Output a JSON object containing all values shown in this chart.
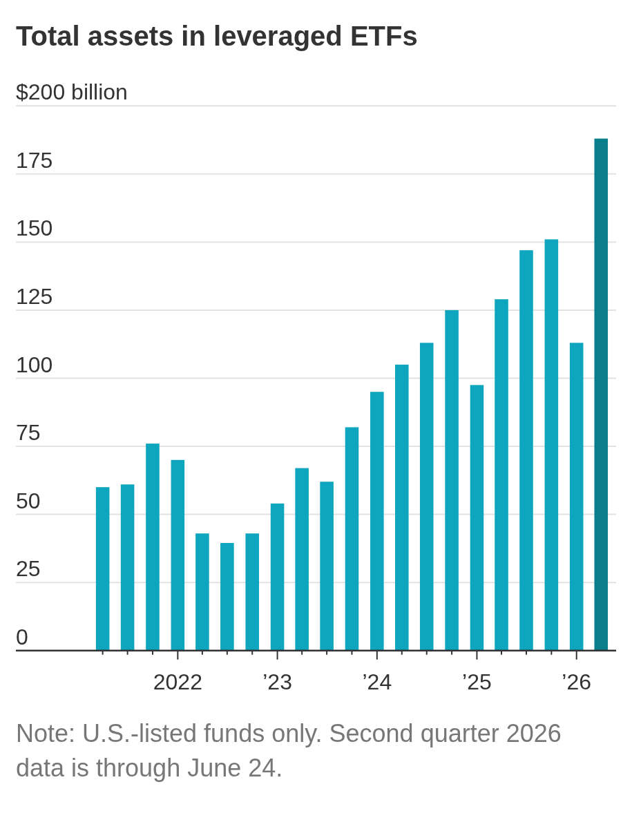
{
  "chart_data": {
    "type": "bar",
    "title": "Total assets in leveraged ETFs",
    "x": [
      "2021-04",
      "2021-07",
      "2021-10",
      "2022-01",
      "2022-04",
      "2022-07",
      "2022-10",
      "2023-01",
      "2023-04",
      "2023-07",
      "2023-10",
      "2024-01",
      "2024-04",
      "2024-07",
      "2024-10",
      "2025-01",
      "2025-04",
      "2025-07",
      "2025-10",
      "2026-01",
      "2026-04"
    ],
    "values": [
      60,
      61,
      76,
      70,
      43,
      39.5,
      43,
      54,
      67,
      62,
      82,
      95,
      105,
      113,
      125,
      97.5,
      129,
      147,
      151,
      113,
      188
    ],
    "colors": [
      "#0ea5bf",
      "#0ea5bf",
      "#0ea5bf",
      "#0ea5bf",
      "#0ea5bf",
      "#0ea5bf",
      "#0ea5bf",
      "#0ea5bf",
      "#0ea5bf",
      "#0ea5bf",
      "#0ea5bf",
      "#0ea5bf",
      "#0ea5bf",
      "#0ea5bf",
      "#0ea5bf",
      "#0ea5bf",
      "#0ea5bf",
      "#0ea5bf",
      "#0ea5bf",
      "#0ea5bf",
      "#0a7f8b"
    ],
    "xlim": [
      "2020-05-18",
      "2026-05-26"
    ],
    "xticks": [
      {
        "value": "2021-04",
        "label": null
      },
      {
        "value": "2021-07",
        "label": null
      },
      {
        "value": "2021-10",
        "label": null
      },
      {
        "value": "2022-01",
        "label": "2022"
      },
      {
        "value": "2022-04",
        "label": null
      },
      {
        "value": "2022-07",
        "label": null
      },
      {
        "value": "2022-10",
        "label": null
      },
      {
        "value": "2023-01",
        "label": "’23"
      },
      {
        "value": "2023-04",
        "label": null
      },
      {
        "value": "2023-07",
        "label": null
      },
      {
        "value": "2023-10",
        "label": null
      },
      {
        "value": "2024-01",
        "label": "’24"
      },
      {
        "value": "2024-04",
        "label": null
      },
      {
        "value": "2024-07",
        "label": null
      },
      {
        "value": "2024-10",
        "label": null
      },
      {
        "value": "2025-01",
        "label": "’25"
      },
      {
        "value": "2025-04",
        "label": null
      },
      {
        "value": "2025-07",
        "label": null
      },
      {
        "value": "2025-10",
        "label": null
      },
      {
        "value": "2026-01",
        "label": "’26"
      }
    ],
    "ylim": [
      0,
      200
    ],
    "yticks": [
      0,
      25,
      50,
      75,
      100,
      125,
      150,
      175,
      {
        "value": 200,
        "label": "$200 billion"
      }
    ],
    "grid": "y",
    "annotations": [
      "Note: U.S.-listed funds only. Second quarter 2026 data is through June 24."
    ]
  }
}
